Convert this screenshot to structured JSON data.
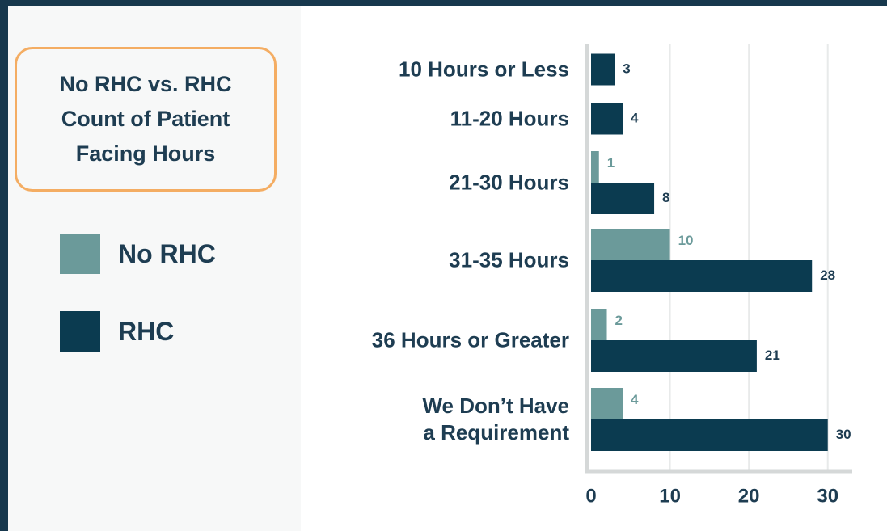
{
  "chart_data": {
    "type": "bar",
    "orientation": "horizontal",
    "title": "No RHC vs. RHC\nCount of Patient\nFacing Hours",
    "categories": [
      "10 Hours or Less",
      "11-20 Hours",
      "21-30 Hours",
      "31-35 Hours",
      "36 Hours or Greater",
      "We Don’t Have\na Requirement"
    ],
    "series": [
      {
        "name": "No RHC",
        "color": "#6b9a9a",
        "values": [
          null,
          null,
          1,
          10,
          2,
          4
        ]
      },
      {
        "name": "RHC",
        "color": "#0b3b50",
        "values": [
          3,
          4,
          8,
          28,
          21,
          30
        ]
      }
    ],
    "xlim": [
      0,
      33
    ],
    "xticks": [
      0,
      10,
      20,
      30
    ],
    "grid": true
  }
}
